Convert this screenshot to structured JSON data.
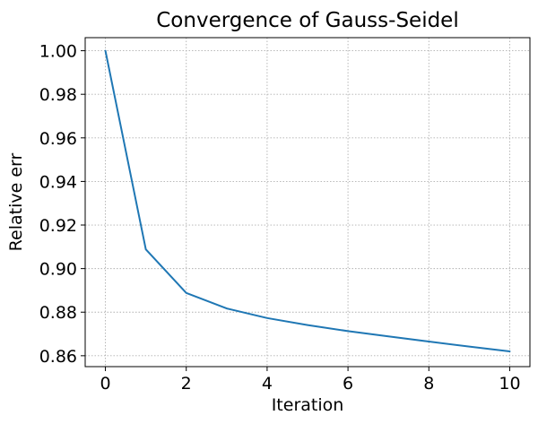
{
  "chart_data": {
    "type": "line",
    "title": "Convergence of Gauss-Seidel",
    "xlabel": "Iteration",
    "ylabel": "Relative err",
    "xlim": [
      -0.5,
      10.5
    ],
    "ylim": [
      0.855,
      1.006
    ],
    "xticks": [
      0,
      2,
      4,
      6,
      8,
      10
    ],
    "xtick_labels": [
      "0",
      "2",
      "4",
      "6",
      "8",
      "10"
    ],
    "yticks": [
      0.86,
      0.88,
      0.9,
      0.92,
      0.94,
      0.96,
      0.98,
      1.0
    ],
    "ytick_labels": [
      "0.86",
      "0.88",
      "0.90",
      "0.92",
      "0.94",
      "0.96",
      "0.98",
      "1.00"
    ],
    "grid": true,
    "series": [
      {
        "color": "#1f77b4",
        "x": [
          0,
          1,
          2,
          3,
          4,
          5,
          6,
          7,
          8,
          9,
          10
        ],
        "values": [
          1.0,
          0.9088,
          0.8888,
          0.8817,
          0.8773,
          0.8741,
          0.8713,
          0.8689,
          0.8665,
          0.8642,
          0.862
        ]
      }
    ]
  }
}
